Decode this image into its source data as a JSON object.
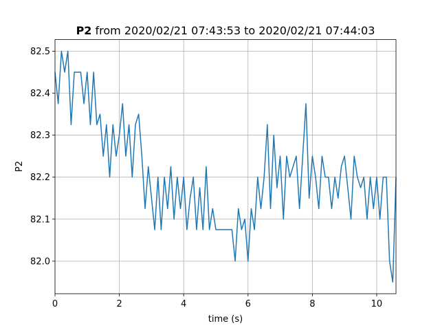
{
  "chart_data": {
    "type": "line",
    "title": {
      "name": "P2",
      "text": "from 2020/02/21 07:43:53 to 2020/02/21 07:44:03"
    },
    "xlabel": "time (s)",
    "ylabel": "P2",
    "x": [
      0,
      0.1,
      0.2,
      0.3,
      0.4,
      0.5,
      0.6,
      0.7,
      0.8,
      0.9,
      1.0,
      1.1,
      1.2,
      1.3,
      1.4,
      1.5,
      1.6,
      1.7,
      1.8,
      1.9,
      2.0,
      2.1,
      2.2,
      2.3,
      2.4,
      2.5,
      2.6,
      2.7,
      2.8,
      2.9,
      3.0,
      3.1,
      3.2,
      3.3,
      3.4,
      3.5,
      3.6,
      3.7,
      3.8,
      3.9,
      4.0,
      4.1,
      4.2,
      4.3,
      4.4,
      4.5,
      4.6,
      4.7,
      4.8,
      4.9,
      5.0,
      5.1,
      5.2,
      5.3,
      5.4,
      5.5,
      5.6,
      5.7,
      5.8,
      5.9,
      6.0,
      6.1,
      6.2,
      6.3,
      6.4,
      6.5,
      6.6,
      6.7,
      6.8,
      6.9,
      7.0,
      7.1,
      7.2,
      7.3,
      7.4,
      7.5,
      7.6,
      7.7,
      7.8,
      7.9,
      8.0,
      8.1,
      8.2,
      8.3,
      8.4,
      8.5,
      8.6,
      8.7,
      8.8,
      8.9,
      9.0,
      9.1,
      9.2,
      9.3,
      9.4,
      9.5,
      9.6,
      9.7,
      9.8,
      9.9,
      10.0,
      10.1,
      10.2,
      10.3,
      10.4,
      10.5,
      10.6
    ],
    "values": [
      82.45,
      82.375,
      82.5,
      82.45,
      82.5,
      82.325,
      82.45,
      82.45,
      82.45,
      82.375,
      82.45,
      82.325,
      82.45,
      82.325,
      82.35,
      82.25,
      82.325,
      82.2,
      82.325,
      82.25,
      82.3,
      82.375,
      82.25,
      82.325,
      82.2,
      82.325,
      82.35,
      82.25,
      82.125,
      82.225,
      82.15,
      82.075,
      82.2,
      82.075,
      82.2,
      82.125,
      82.225,
      82.1,
      82.2,
      82.125,
      82.2,
      82.075,
      82.15,
      82.2,
      82.075,
      82.175,
      82.075,
      82.225,
      82.075,
      82.125,
      82.075,
      82.075,
      82.075,
      82.075,
      82.075,
      82.075,
      82.0,
      82.125,
      82.075,
      82.1,
      82.0,
      82.125,
      82.075,
      82.2,
      82.125,
      82.2,
      82.325,
      82.125,
      82.3,
      82.175,
      82.25,
      82.1,
      82.25,
      82.2,
      82.225,
      82.25,
      82.125,
      82.25,
      82.375,
      82.15,
      82.25,
      82.2,
      82.125,
      82.25,
      82.2,
      82.2,
      82.125,
      82.2,
      82.15,
      82.225,
      82.25,
      82.175,
      82.1,
      82.25,
      82.2,
      82.175,
      82.2,
      82.1,
      82.2,
      82.125,
      82.2,
      82.1,
      82.2,
      82.2,
      82.0,
      81.95,
      82.2
    ],
    "color": "#1f77b4",
    "xlim": [
      0,
      10.6
    ],
    "xticks": [
      0,
      2,
      4,
      6,
      8,
      10
    ],
    "ylim": [
      81.9225,
      82.5275
    ],
    "yticks": [
      {
        "value": 82,
        "label": "82.0"
      },
      82.1,
      82.2,
      82.3,
      82.4,
      82.5
    ],
    "grid": true
  }
}
